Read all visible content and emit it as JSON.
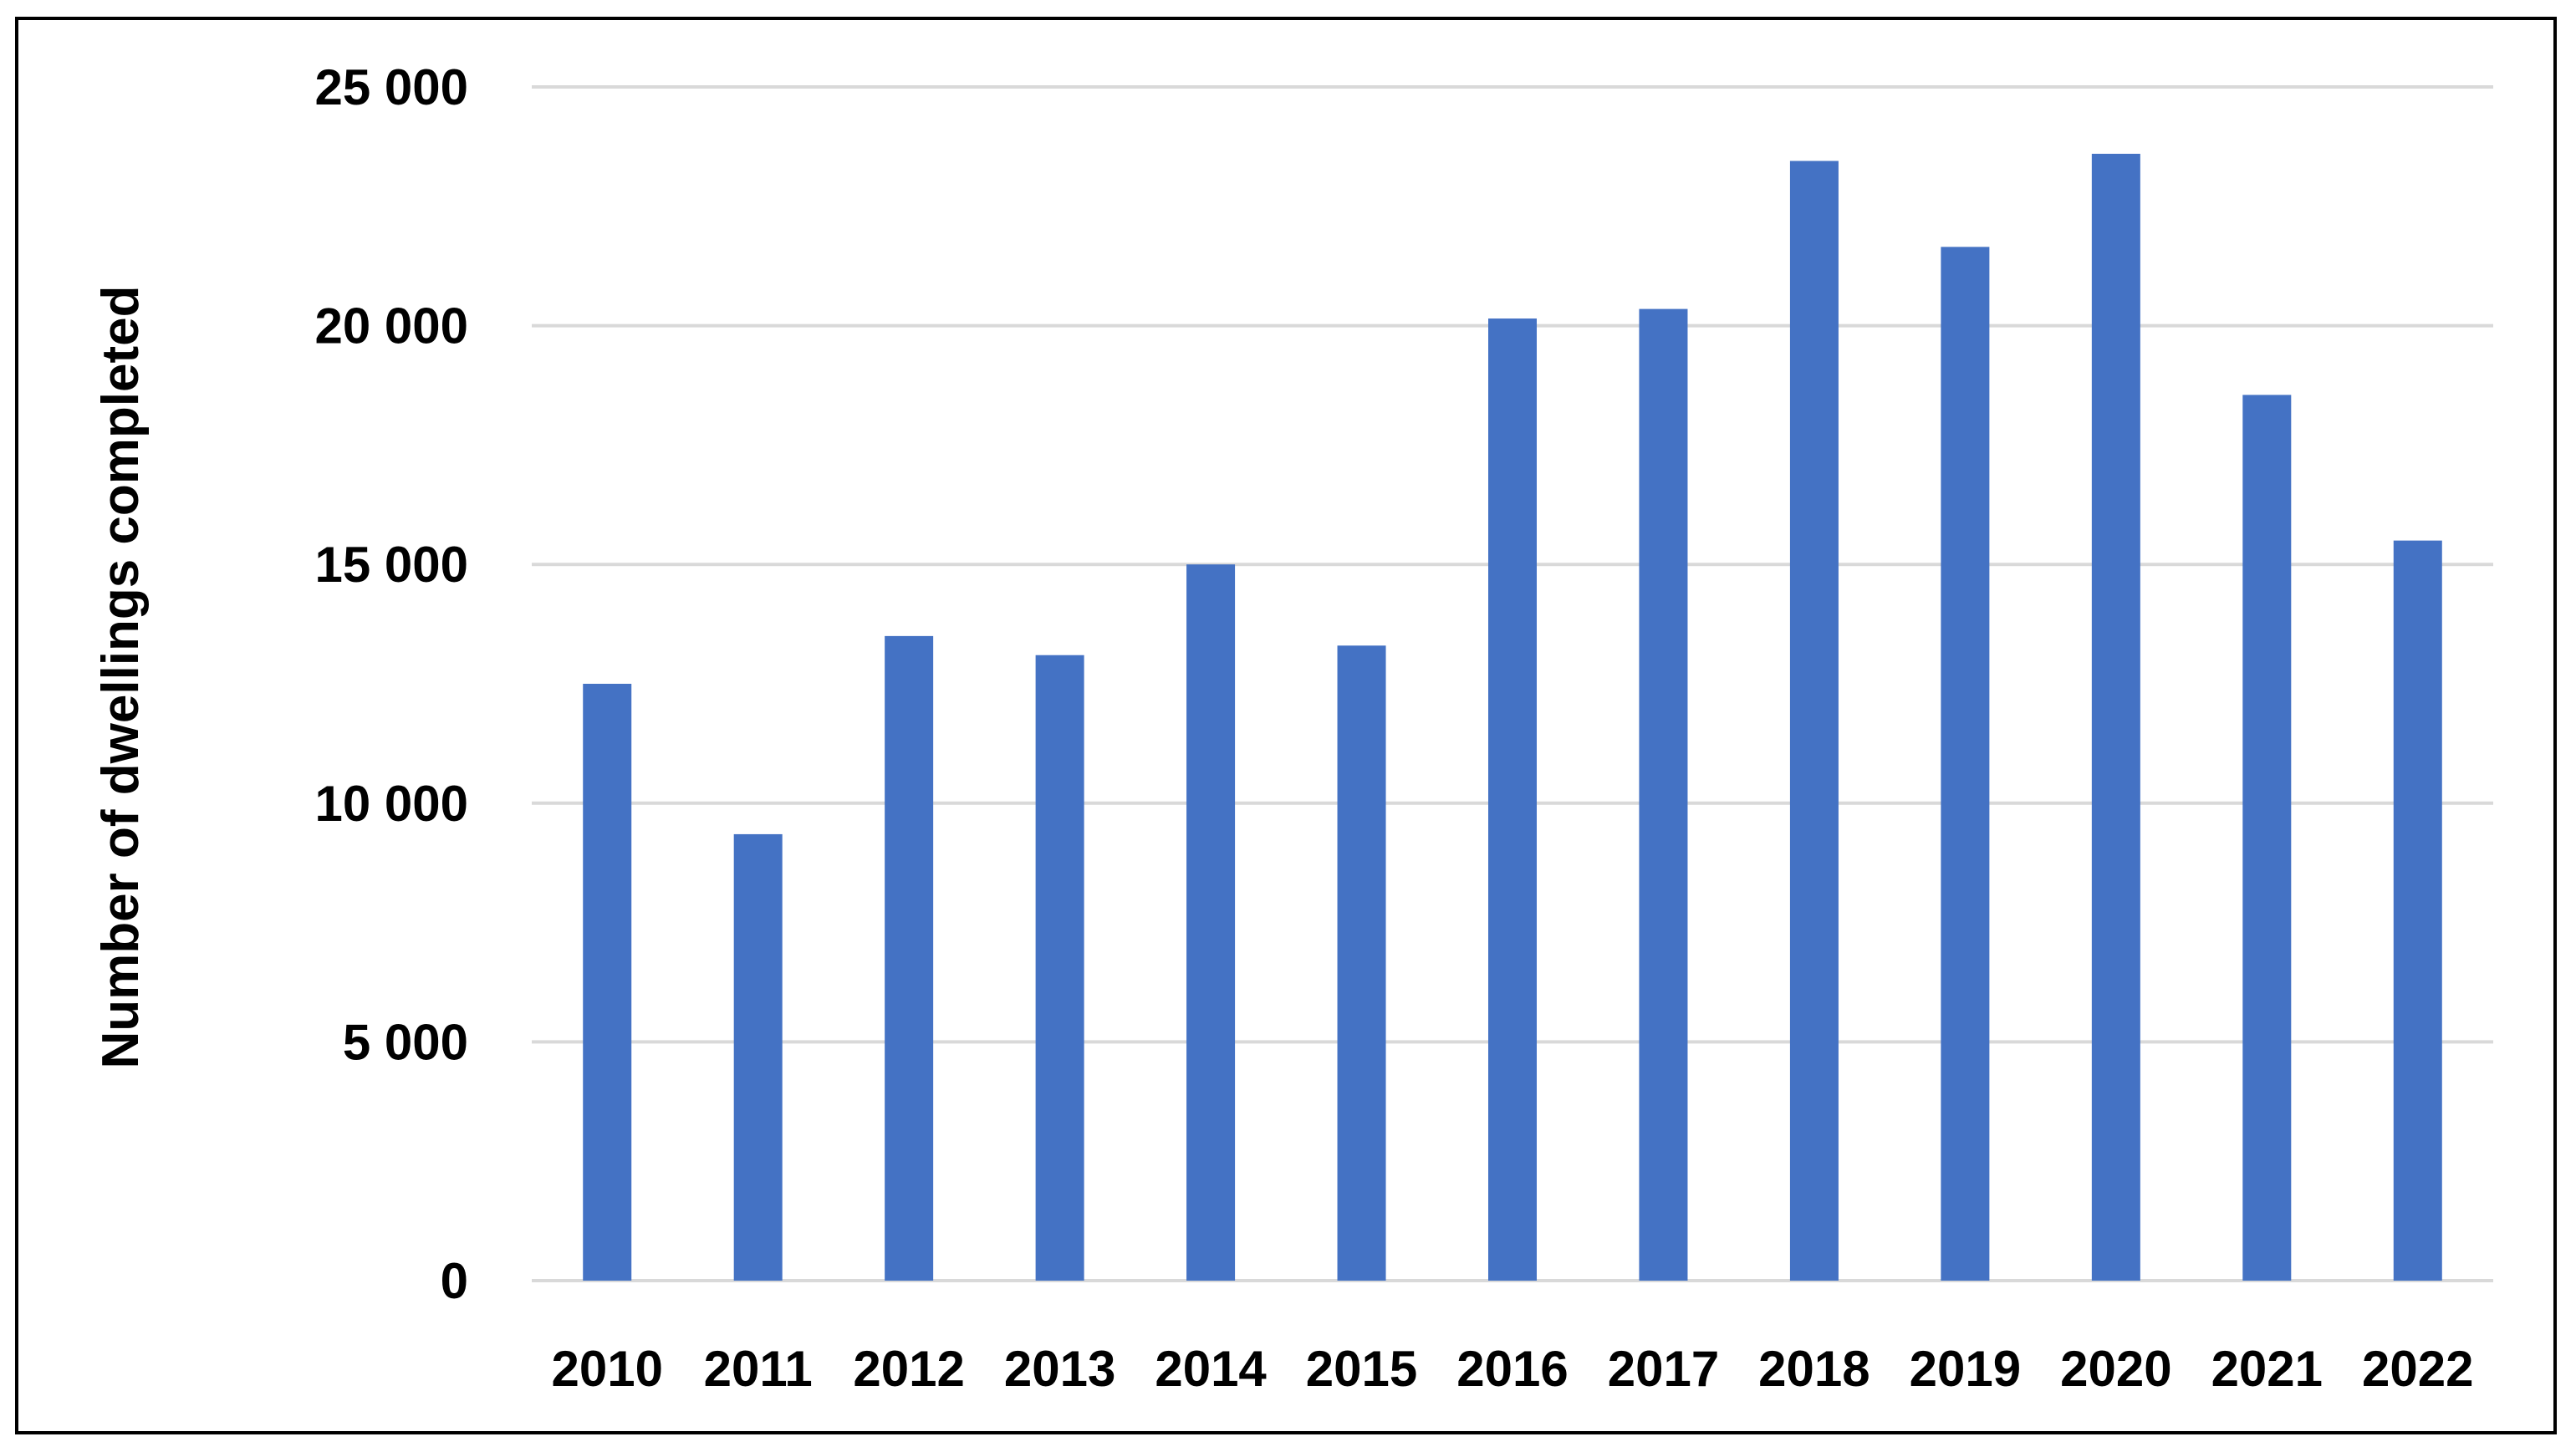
{
  "chart_data": {
    "type": "bar",
    "title": "",
    "xlabel": "",
    "ylabel": "Number of dwellings completed",
    "categories": [
      "2010",
      "2011",
      "2012",
      "2013",
      "2014",
      "2015",
      "2016",
      "2017",
      "2018",
      "2019",
      "2020",
      "2021",
      "2022"
    ],
    "series": [
      {
        "values": [
          12500,
          9350,
          13500,
          13100,
          15000,
          13300,
          20150,
          20350,
          23450,
          21650,
          23600,
          18550,
          15500
        ],
        "color": "#4472c4"
      }
    ],
    "ylim": [
      0,
      25000
    ],
    "yticks": [
      0,
      5000,
      10000,
      15000,
      20000,
      25000
    ],
    "ytick_labels": [
      "0",
      "5 000",
      "10 000",
      "15 000",
      "20 000",
      "25 000"
    ],
    "grid": true,
    "legend": "none"
  }
}
